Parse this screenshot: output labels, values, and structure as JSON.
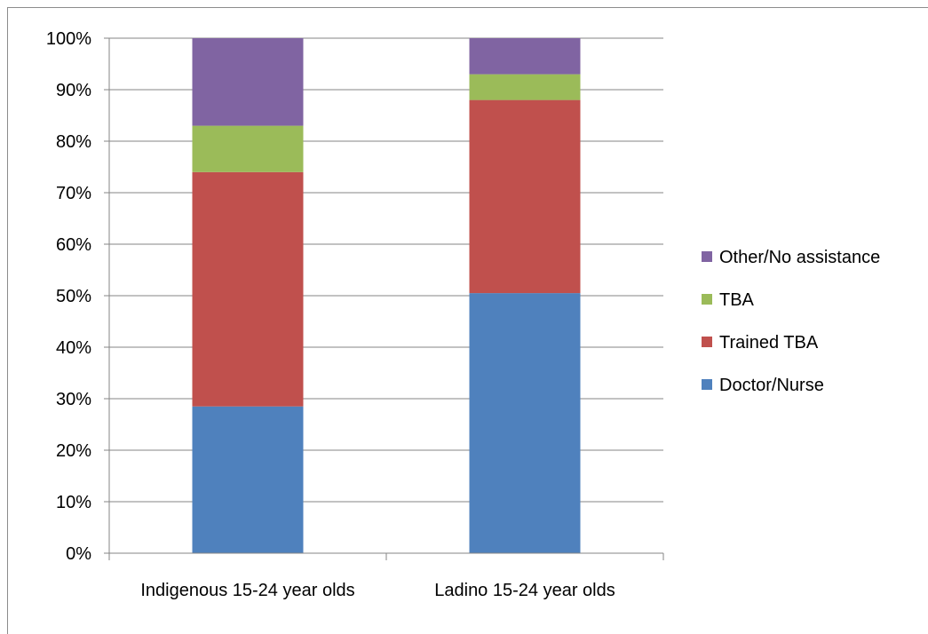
{
  "chart_data": {
    "type": "bar",
    "stacked": "percent",
    "categories": [
      "Indigenous 15-24 year olds",
      "Ladino 15-24 year olds"
    ],
    "series": [
      {
        "name": "Doctor/Nurse",
        "color": "#4f81bd",
        "values": [
          28.5,
          50.5
        ]
      },
      {
        "name": "Trained TBA",
        "color": "#c0504d",
        "values": [
          45.5,
          37.5
        ]
      },
      {
        "name": "TBA",
        "color": "#9bbb59",
        "values": [
          9,
          5
        ]
      },
      {
        "name": "Other/No assistance",
        "color": "#8064a2",
        "values": [
          17,
          7
        ]
      }
    ],
    "y_ticks": [
      "0%",
      "10%",
      "20%",
      "30%",
      "40%",
      "50%",
      "60%",
      "70%",
      "80%",
      "90%",
      "100%"
    ],
    "ylim": [
      0,
      100
    ],
    "grid": true,
    "legend_position": "right"
  }
}
